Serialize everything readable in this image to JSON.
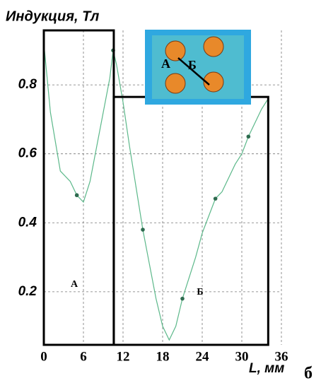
{
  "chart_data": {
    "type": "line",
    "title": "Индукция, Тл",
    "x_label": "L, мм",
    "panel_label": "б",
    "x": [
      0,
      1,
      2.5,
      4,
      5,
      6,
      7,
      8,
      9,
      10,
      10.5,
      11,
      12,
      13,
      14,
      15,
      16,
      17,
      18,
      19,
      20,
      21,
      22,
      23,
      24,
      25,
      26,
      27,
      28,
      29,
      30,
      31,
      32,
      33,
      34
    ],
    "series": [
      {
        "color": "#5cb88a",
        "values": [
          0.92,
          0.72,
          0.55,
          0.52,
          0.48,
          0.46,
          0.52,
          0.62,
          0.72,
          0.82,
          0.9,
          0.86,
          0.75,
          0.62,
          0.5,
          0.38,
          0.28,
          0.18,
          0.1,
          0.06,
          0.1,
          0.18,
          0.24,
          0.3,
          0.37,
          0.42,
          0.47,
          0.49,
          0.53,
          0.57,
          0.6,
          0.65,
          0.69,
          0.73,
          0.76
        ]
      },
      {
        "color": "#2e6b4f",
        "marker": true,
        "values": [
          null,
          null,
          null,
          null,
          0.48,
          null,
          null,
          null,
          null,
          null,
          0.9,
          null,
          null,
          null,
          null,
          0.38,
          null,
          null,
          null,
          null,
          null,
          0.18,
          null,
          null,
          null,
          null,
          0.47,
          null,
          null,
          null,
          null,
          0.65,
          null,
          null,
          null
        ]
      }
    ],
    "xlim": [
      0,
      36
    ],
    "xticks": [
      0,
      6,
      12,
      18,
      24,
      30,
      36
    ],
    "ylim": [
      0.046,
      0.958
    ],
    "yticks": [
      0.2,
      0.4,
      0.6,
      0.8
    ],
    "grid": true,
    "regions": [
      {
        "label": "А",
        "x0": 0,
        "x1": 10.6,
        "ytop": 0.958
      },
      {
        "label": "Б",
        "x0": 10.6,
        "x1": 34,
        "ytop": 0.765
      }
    ],
    "inset_labels": [
      "А",
      "Б"
    ]
  }
}
